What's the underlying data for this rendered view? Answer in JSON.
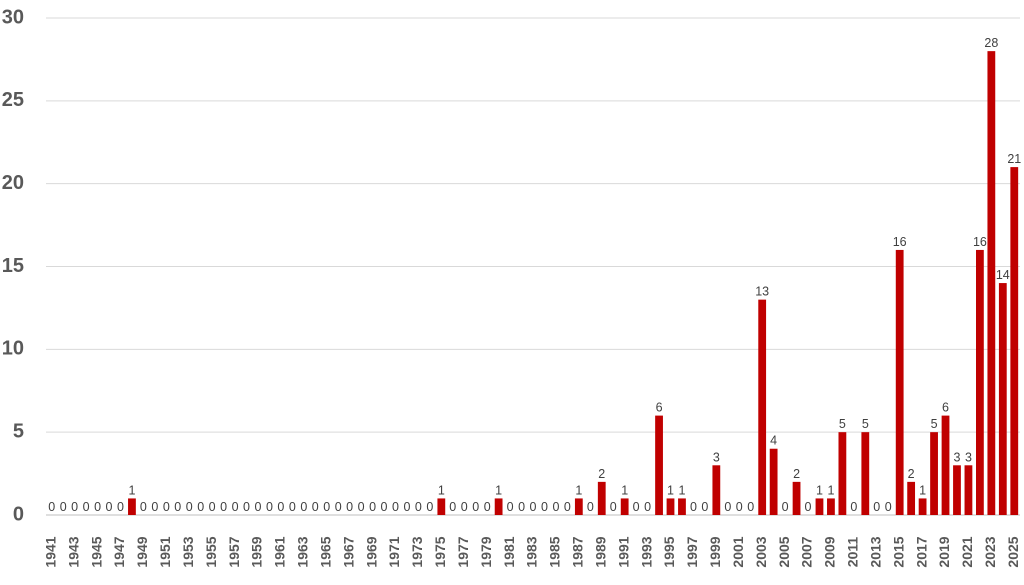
{
  "chart_data": {
    "type": "bar",
    "categories": [
      "1941",
      null,
      "1943",
      null,
      "1945",
      null,
      "1947",
      null,
      "1949",
      null,
      "1951",
      null,
      "1953",
      null,
      "1955",
      null,
      "1957",
      null,
      "1959",
      null,
      "1961",
      null,
      "1963",
      null,
      "1965",
      null,
      "1967",
      null,
      "1969",
      null,
      "1971",
      null,
      "1973",
      null,
      "1975",
      null,
      "1977",
      null,
      "1979",
      null,
      "1981",
      null,
      "1983",
      null,
      "1985",
      null,
      "1987",
      null,
      "1989",
      null,
      "1991",
      null,
      "1993",
      null,
      "1995",
      null,
      "1997",
      null,
      "1999",
      null,
      "2001",
      null,
      "2003",
      null,
      "2005",
      null,
      "2007",
      null,
      "2009",
      null,
      "2011",
      null,
      "2013",
      null,
      "2015",
      null,
      "2017",
      null,
      "2019",
      null,
      "2021",
      null,
      "2023",
      null,
      "2025"
    ],
    "values": [
      0,
      0,
      0,
      0,
      0,
      0,
      0,
      1,
      0,
      0,
      0,
      0,
      0,
      0,
      0,
      0,
      0,
      0,
      0,
      0,
      0,
      0,
      0,
      0,
      0,
      0,
      0,
      0,
      0,
      0,
      0,
      0,
      0,
      0,
      1,
      0,
      0,
      0,
      0,
      1,
      0,
      0,
      0,
      0,
      0,
      0,
      1,
      0,
      2,
      0,
      1,
      0,
      0,
      6,
      1,
      1,
      0,
      0,
      3,
      0,
      0,
      0,
      13,
      4,
      0,
      2,
      0,
      1,
      1,
      5,
      0,
      5,
      0,
      0,
      16,
      2,
      1,
      5,
      6,
      3,
      3,
      16,
      28,
      14,
      21
    ],
    "color": "#c00000",
    "ylim": [
      0,
      30
    ],
    "yticks": [
      0,
      5,
      10,
      15,
      20,
      25,
      30
    ],
    "grid": true
  }
}
